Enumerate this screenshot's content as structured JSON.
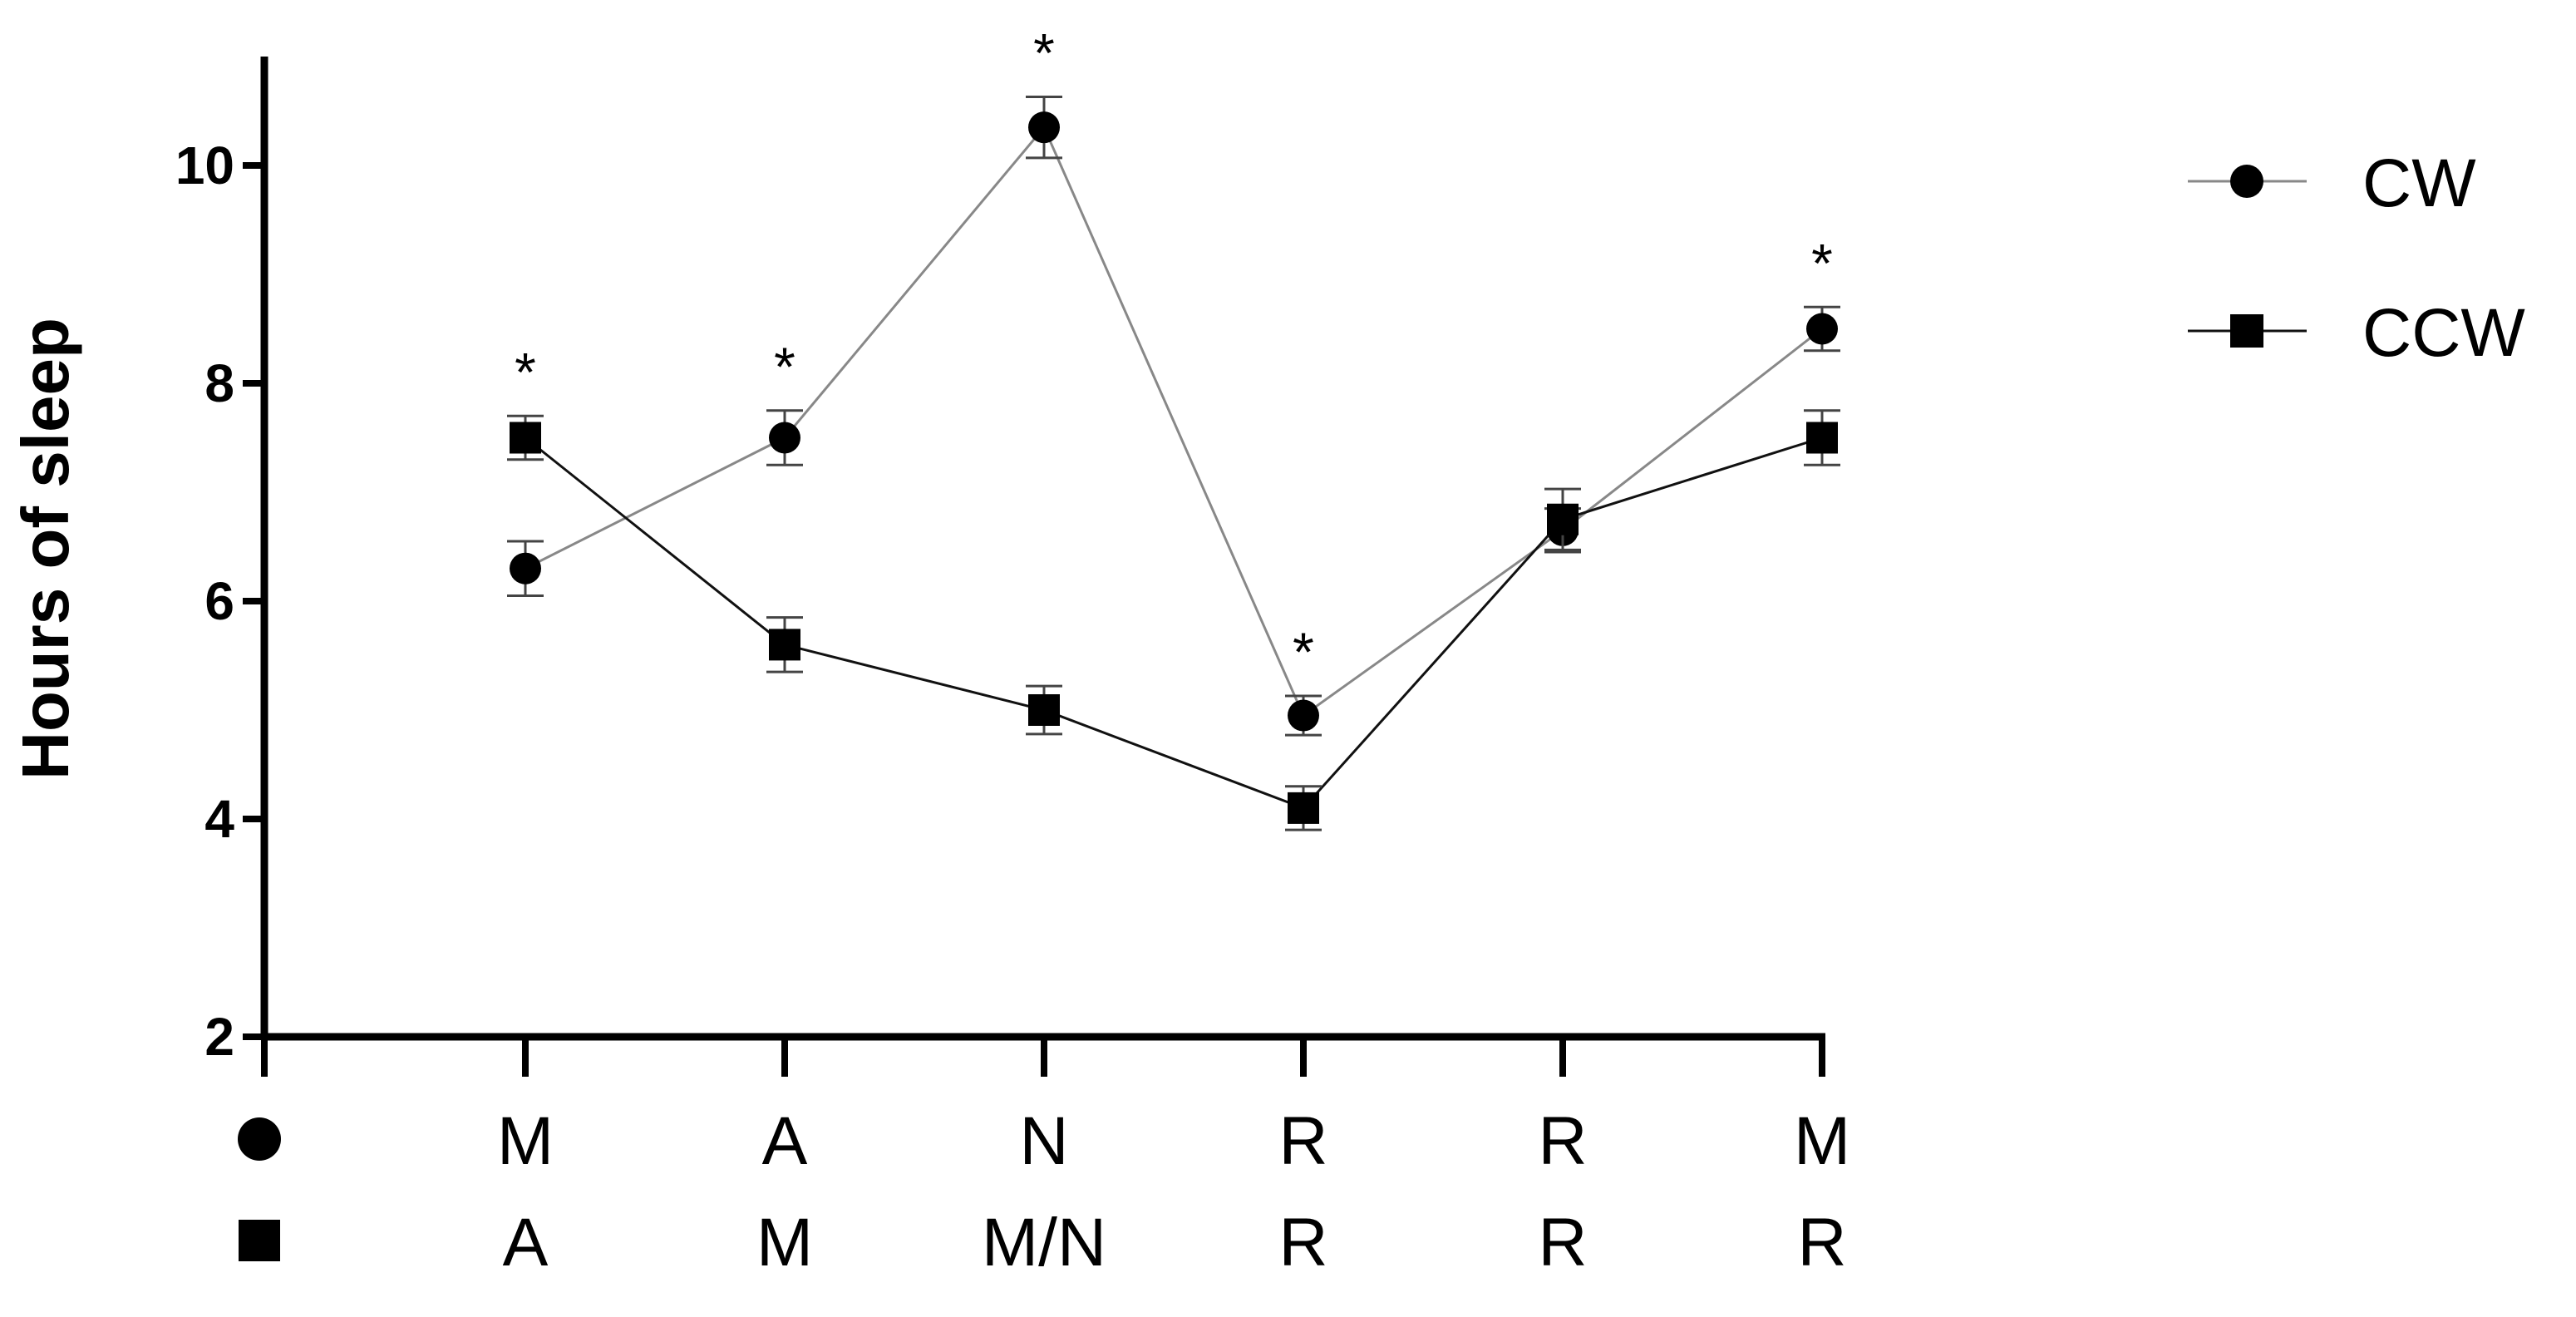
{
  "chart_data": {
    "type": "line",
    "ylabel": "Hours of sleep",
    "ylim": [
      2,
      11
    ],
    "yticks": [
      2,
      4,
      6,
      8,
      10
    ],
    "grid": false,
    "legend_position": "top-right",
    "x_category_rows": [
      {
        "marker": "circle",
        "labels": [
          "M",
          "A",
          "N",
          "R",
          "R",
          "M"
        ]
      },
      {
        "marker": "square",
        "labels": [
          "A",
          "M",
          "M/N",
          "R",
          "R",
          "R"
        ]
      }
    ],
    "series": [
      {
        "name": "CW",
        "marker": "circle",
        "line_color": "#888888",
        "values": [
          6.3,
          7.5,
          10.35,
          4.95,
          6.65,
          8.5
        ],
        "errors": [
          0.25,
          0.25,
          0.28,
          0.18,
          0.2,
          0.2
        ]
      },
      {
        "name": "CCW",
        "marker": "square",
        "line_color": "#111111",
        "values": [
          7.5,
          5.6,
          5.0,
          4.1,
          6.75,
          7.5
        ],
        "errors": [
          0.2,
          0.25,
          0.22,
          0.2,
          0.28,
          0.25
        ]
      }
    ],
    "annotations": [
      {
        "index": 0,
        "text": "*"
      },
      {
        "index": 1,
        "text": "*"
      },
      {
        "index": 2,
        "text": "*"
      },
      {
        "index": 3,
        "text": "*"
      },
      {
        "index": 5,
        "text": "*"
      }
    ]
  }
}
